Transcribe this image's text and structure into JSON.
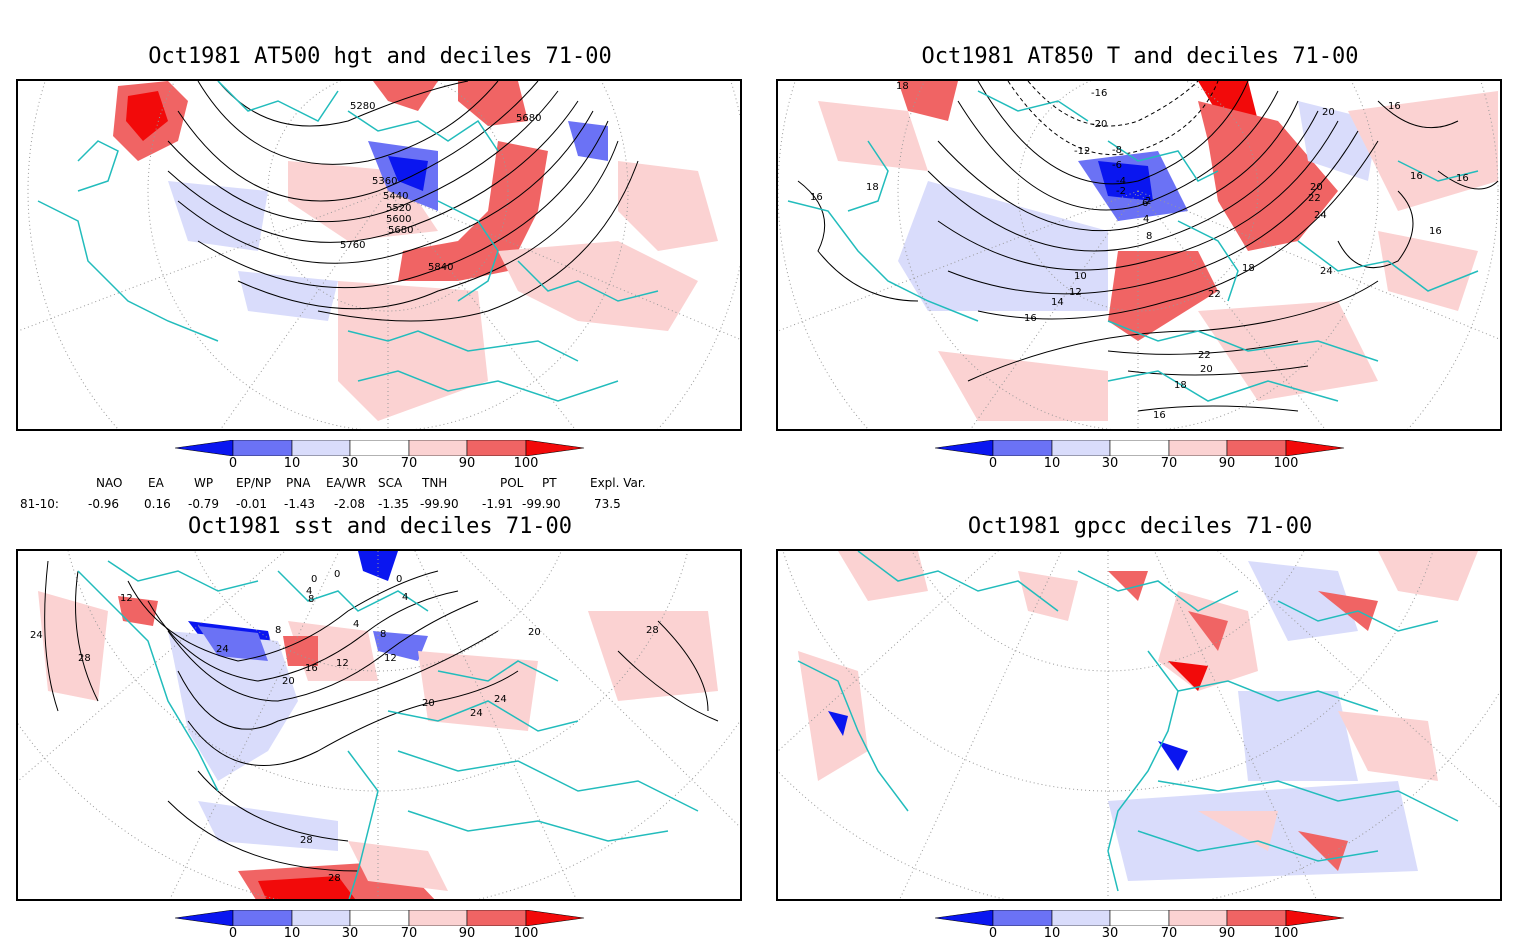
{
  "panels": [
    {
      "title": "Oct1981 AT500 hgt and deciles 71-00",
      "contour_labels": [
        "5280",
        "5680",
        "5360",
        "5440",
        "5520",
        "5600",
        "5680",
        "5760",
        "5840"
      ]
    },
    {
      "title": "Oct1981 AT850 T and deciles 71-00",
      "contour_labels": [
        "18",
        "16",
        "-16",
        "-20",
        "16",
        "20",
        "-12",
        "-8",
        "-6",
        "-4",
        "-2",
        "16",
        "18",
        "2",
        "4",
        "6",
        "8",
        "10",
        "12",
        "14",
        "16",
        "16",
        "18",
        "20",
        "22",
        "22",
        "24",
        "24",
        "16",
        "22",
        "20",
        "18",
        "16"
      ]
    },
    {
      "title": "Oct1981 sst and deciles 71-00",
      "contour_labels": [
        "0",
        "0",
        "0",
        "4",
        "4",
        "8",
        "12",
        "8",
        "8",
        "4",
        "12",
        "12",
        "16",
        "20",
        "24",
        "24",
        "24",
        "20",
        "20",
        "24",
        "28",
        "28",
        "28",
        "28"
      ]
    },
    {
      "title": "Oct1981 gpcc deciles 71-00",
      "contour_labels": []
    }
  ],
  "colorbar": {
    "tick_labels": [
      "0",
      "10",
      "30",
      "70",
      "90",
      "100"
    ],
    "colors": [
      "#0a16f0",
      "#6b72f5",
      "#d9dcfb",
      "#ffffff",
      "#fbd2d2",
      "#f06464",
      "#f20a0a"
    ]
  },
  "indices": {
    "headers": [
      "NAO",
      "EA",
      "WP",
      "EP/NP",
      "PNA",
      "EA/WR",
      "SCA",
      "TNH",
      "POL",
      "PT",
      "Expl. Var."
    ],
    "row_label": "81-10:",
    "values": [
      "-0.96",
      "0.16",
      "-0.79",
      "-0.01",
      "-1.43",
      "-2.08",
      "-1.35",
      "-99.90",
      "-1.91",
      "-99.90",
      "73.5"
    ]
  },
  "colors": {
    "coast": "#22bcbc",
    "contour": "#000000",
    "grid": "#999999"
  }
}
